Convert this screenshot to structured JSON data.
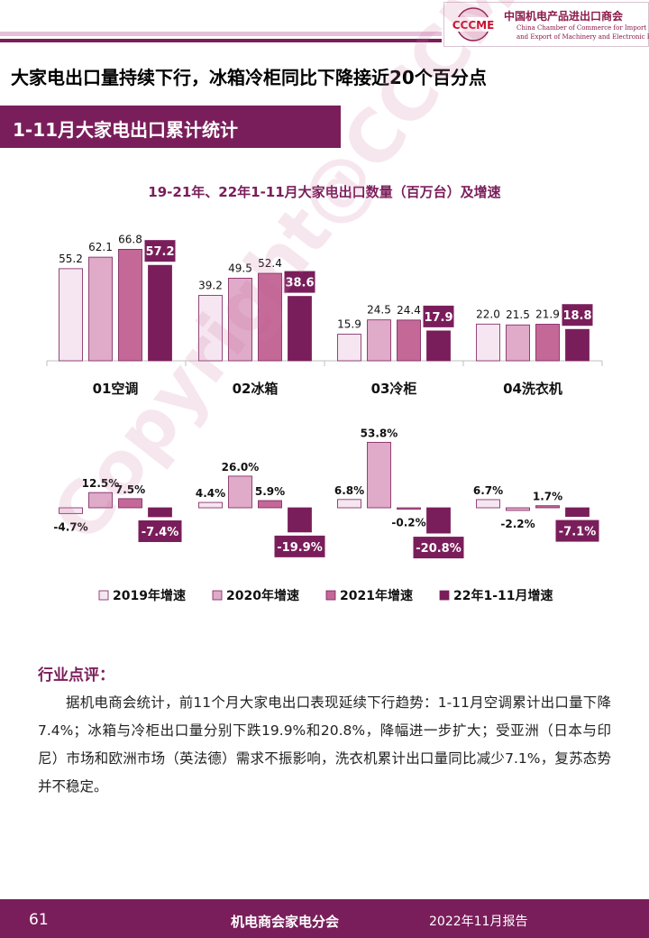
{
  "org": {
    "name_cn": "中国机电产品进出口商会",
    "name_en_line1": "China Chamber of Commerce for Import",
    "name_en_line2": "and Export of Machinery and Electronic Products",
    "logo_text": "CCCME"
  },
  "headline": "大家电出口量持续下行，冰箱冷柜同比下降接近20个百分点",
  "section_title": "1-11月大家电出口累计统计",
  "watermark": "Copyright@CCCME",
  "colors": {
    "brand": "#7a1e5b",
    "series_2019": "#f6e6f1",
    "series_2020": "#e0aac9",
    "series_2021": "#c46898",
    "series_2022": "#7a1e5b"
  },
  "chart_data": {
    "type": "bar",
    "title": "19-21年、22年1-11月大家电出口数量（百万台）及增速",
    "categories": [
      "01空调",
      "02冰箱",
      "03冷柜",
      "04洗衣机"
    ],
    "series": [
      {
        "name": "2019年增速",
        "volume": [
          55.2,
          39.2,
          15.9,
          22.0
        ],
        "volume_labels": [
          "55.2",
          "39.2",
          "15.9",
          "22.0"
        ],
        "growth": [
          -4.7,
          4.4,
          6.8,
          6.7
        ],
        "growth_labels": [
          "-4.7%",
          "4.4%",
          "6.8%",
          "6.7%"
        ]
      },
      {
        "name": "2020年增速",
        "volume": [
          62.1,
          49.5,
          24.5,
          21.5
        ],
        "volume_labels": [
          "62.1",
          "49.5",
          "24.5",
          "21.5"
        ],
        "growth": [
          12.5,
          26.0,
          53.8,
          -2.2
        ],
        "growth_labels": [
          "12.5%",
          "26.0%",
          "53.8%",
          "-2.2%"
        ]
      },
      {
        "name": "2021年增速",
        "volume": [
          66.8,
          52.4,
          24.4,
          21.9
        ],
        "volume_labels": [
          "66.8",
          "52.4",
          "24.4",
          "21.9"
        ],
        "growth": [
          7.5,
          5.9,
          -0.2,
          1.7
        ],
        "growth_labels": [
          "7.5%",
          "5.9%",
          "-0.2%",
          "1.7%"
        ]
      },
      {
        "name": "22年1-11月增速",
        "volume": [
          57.2,
          38.6,
          17.9,
          18.8
        ],
        "volume_labels": [
          "57.2",
          "38.6",
          "17.9",
          "18.8"
        ],
        "growth": [
          -7.4,
          -19.9,
          -20.8,
          -7.1
        ],
        "growth_labels": [
          "-7.4%",
          "-19.9%",
          "-20.8%",
          "-7.1%"
        ]
      }
    ],
    "legend_position": "bottom",
    "grid": false
  },
  "comment": {
    "title": "行业点评：",
    "body": "据机电商会统计，前11个月大家电出口表现延续下行趋势：1-11月空调累计出口量下降7.4%；冰箱与冷柜出口量分别下跌19.9%和20.8%，降幅进一步扩大；受亚洲（日本与印尼）市场和欧洲市场（英法德）需求不振影响，洗衣机累计出口量同比减少7.1%，复苏态势并不稳定。"
  },
  "footer": {
    "page": "61",
    "org": "机电商会家电分会",
    "report": "2022年11月报告"
  }
}
